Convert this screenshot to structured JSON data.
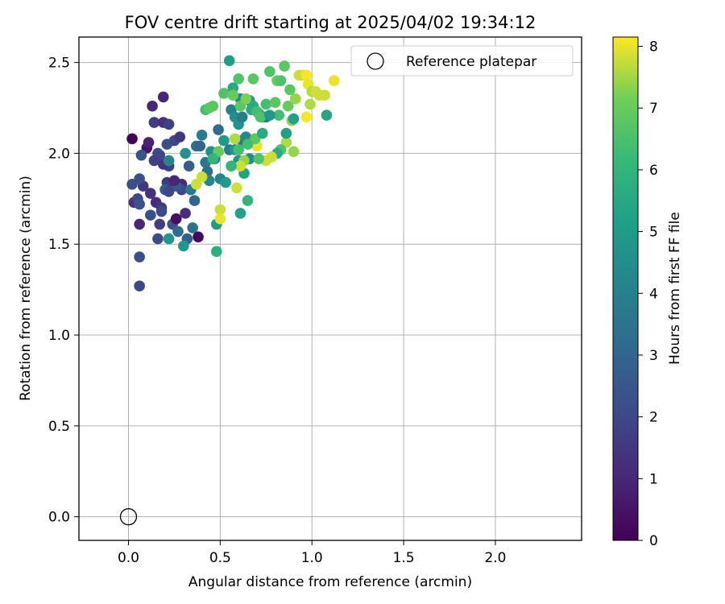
{
  "chart_data": {
    "type": "scatter",
    "title": "FOV centre drift starting at 2025/04/02 19:34:12",
    "xlabel": "Angular distance from reference (arcmin)",
    "ylabel": "Rotation from reference (arcmin)",
    "xlim": [
      -0.27,
      2.47
    ],
    "ylim": [
      -0.13,
      2.64
    ],
    "xticks": [
      "0.0",
      "0.5",
      "1.0",
      "1.5",
      "2.0"
    ],
    "yticks": [
      "0.0",
      "0.5",
      "1.0",
      "1.5",
      "2.0",
      "2.5"
    ],
    "grid": true,
    "legend": {
      "location": "top-right",
      "entries": [
        "Reference platepar"
      ]
    },
    "colorbar": {
      "label": "Hours from first FF file",
      "min": 0,
      "max": 8.15,
      "ticks": [
        "0",
        "1",
        "2",
        "3",
        "4",
        "5",
        "6",
        "7",
        "8"
      ],
      "colormap": "viridis"
    },
    "reference_point": {
      "x": 0.0,
      "y": 0.0,
      "label": "Reference platepar"
    },
    "series": [
      {
        "points": [
          [
            0.02,
            2.08,
            0.1
          ],
          [
            0.1,
            2.03,
            0.5
          ],
          [
            0.11,
            2.06,
            0.9
          ],
          [
            0.13,
            2.26,
            1.0
          ],
          [
            0.19,
            2.31,
            1.0
          ],
          [
            0.14,
            2.17,
            1.6
          ],
          [
            0.19,
            2.17,
            1.2
          ],
          [
            0.22,
            2.16,
            1.8
          ],
          [
            0.03,
            1.73,
            1.2
          ],
          [
            0.06,
            1.61,
            1.0
          ],
          [
            0.08,
            1.82,
            1.5
          ],
          [
            0.12,
            1.78,
            1.3
          ],
          [
            0.15,
            1.73,
            1.2
          ],
          [
            0.18,
            1.7,
            1.5
          ],
          [
            0.17,
            1.61,
            1.7
          ],
          [
            0.16,
            1.53,
            2.1
          ],
          [
            0.12,
            1.66,
            2.2
          ],
          [
            0.24,
            1.61,
            2.4
          ],
          [
            0.26,
            1.64,
            0.4
          ],
          [
            0.31,
            1.67,
            1.2
          ],
          [
            0.32,
            1.53,
            2.8
          ],
          [
            0.38,
            1.54,
            0.2
          ],
          [
            0.29,
            1.83,
            1.0
          ],
          [
            0.29,
            1.8,
            2.0
          ],
          [
            0.26,
            1.82,
            2.6
          ],
          [
            0.21,
            1.84,
            1.6
          ],
          [
            0.25,
            1.85,
            1.0
          ],
          [
            0.22,
            1.93,
            1.8
          ],
          [
            0.19,
            1.94,
            1.4
          ],
          [
            0.16,
            2.0,
            2.0
          ],
          [
            0.21,
            2.05,
            2.2
          ],
          [
            0.25,
            2.07,
            2.0
          ],
          [
            0.28,
            2.09,
            1.5
          ],
          [
            0.17,
            1.99,
            2.0
          ],
          [
            0.14,
            1.96,
            1.8
          ],
          [
            0.07,
            1.99,
            2.4
          ],
          [
            0.06,
            1.86,
            2.2
          ],
          [
            0.02,
            1.83,
            2.2
          ],
          [
            0.05,
            1.75,
            2.0
          ],
          [
            0.06,
            1.72,
            2.4
          ],
          [
            0.06,
            1.43,
            2.2
          ],
          [
            0.06,
            1.27,
            2.0
          ],
          [
            0.18,
            1.68,
            2.0
          ],
          [
            0.2,
            1.8,
            2.6
          ],
          [
            0.22,
            1.79,
            1.9
          ],
          [
            0.22,
            1.96,
            4.2
          ],
          [
            0.27,
            1.57,
            3.2
          ],
          [
            0.22,
            1.53,
            4.8
          ],
          [
            0.3,
            1.49,
            4.9
          ],
          [
            0.35,
            1.59,
            3.4
          ],
          [
            0.36,
            1.74,
            3.0
          ],
          [
            0.34,
            1.8,
            3.6
          ],
          [
            0.33,
            1.93,
            2.7
          ],
          [
            0.31,
            2.0,
            4.6
          ],
          [
            0.37,
            2.04,
            3.4
          ],
          [
            0.39,
            2.04,
            3.0
          ],
          [
            0.4,
            2.1,
            3.8
          ],
          [
            0.42,
            1.95,
            3.6
          ],
          [
            0.43,
            1.9,
            3.3
          ],
          [
            0.44,
            1.85,
            4.2
          ],
          [
            0.45,
            2.01,
            4.6
          ],
          [
            0.47,
            1.97,
            4.0
          ],
          [
            0.49,
            2.13,
            3.2
          ],
          [
            0.5,
            1.86,
            4.2
          ],
          [
            0.52,
            2.07,
            5.0
          ],
          [
            0.55,
            2.02,
            3.8
          ],
          [
            0.56,
            2.24,
            4.0
          ],
          [
            0.58,
            2.2,
            4.6
          ],
          [
            0.6,
            2.16,
            4.6
          ],
          [
            0.61,
            2.3,
            4.4
          ],
          [
            0.62,
            2.07,
            3.6
          ],
          [
            0.62,
            2.2,
            3.8
          ],
          [
            0.64,
            2.09,
            4.4
          ],
          [
            0.66,
            1.97,
            4.4
          ],
          [
            0.66,
            2.29,
            5.0
          ],
          [
            0.67,
            2.24,
            5.4
          ],
          [
            0.68,
            2.26,
            5.6
          ],
          [
            0.71,
            2.22,
            5.0
          ],
          [
            0.73,
            2.2,
            4.4
          ],
          [
            0.75,
            2.2,
            3.7
          ],
          [
            0.63,
            1.89,
            5.3
          ],
          [
            0.61,
            1.67,
            5.2
          ],
          [
            0.53,
            1.84,
            5.0
          ],
          [
            0.48,
            1.61,
            5.0
          ],
          [
            0.48,
            1.46,
            5.8
          ],
          [
            0.55,
            2.51,
            5.1
          ],
          [
            0.57,
            2.36,
            5.5
          ],
          [
            0.58,
            2.02,
            4.9
          ],
          [
            0.6,
            1.96,
            4.6
          ],
          [
            0.65,
            1.74,
            6.0
          ],
          [
            0.42,
            2.24,
            6.4
          ],
          [
            0.44,
            2.25,
            6.8
          ],
          [
            0.46,
            2.26,
            6.8
          ],
          [
            0.52,
            2.33,
            6.6
          ],
          [
            0.57,
            2.32,
            7.0
          ],
          [
            0.6,
            2.41,
            6.6
          ],
          [
            0.61,
            2.26,
            6.8
          ],
          [
            0.64,
            2.3,
            7.2
          ],
          [
            0.68,
            2.41,
            6.8
          ],
          [
            0.7,
            2.23,
            6.4
          ],
          [
            0.72,
            2.2,
            6.6
          ],
          [
            0.75,
            2.27,
            6.4
          ],
          [
            0.77,
            2.45,
            6.6
          ],
          [
            0.8,
            2.28,
            6.8
          ],
          [
            0.81,
            2.4,
            7.0
          ],
          [
            0.83,
            2.4,
            6.6
          ],
          [
            0.85,
            2.48,
            6.8
          ],
          [
            0.87,
            2.26,
            7.0
          ],
          [
            0.88,
            2.35,
            6.8
          ],
          [
            0.89,
            2.18,
            7.4
          ],
          [
            0.91,
            2.3,
            7.4
          ],
          [
            0.93,
            2.43,
            7.8
          ],
          [
            0.95,
            2.43,
            7.8
          ],
          [
            0.97,
            2.43,
            8.1
          ],
          [
            0.98,
            2.38,
            8.0
          ],
          [
            1.0,
            2.34,
            7.6
          ],
          [
            1.02,
            2.34,
            7.8
          ],
          [
            1.04,
            2.32,
            7.8
          ],
          [
            1.07,
            2.32,
            7.8
          ],
          [
            1.12,
            2.4,
            8.0
          ],
          [
            0.99,
            2.27,
            7.6
          ],
          [
            0.97,
            2.2,
            8.1
          ],
          [
            0.9,
            2.01,
            7.4
          ],
          [
            0.86,
            2.06,
            7.6
          ],
          [
            0.83,
            2.02,
            6.6
          ],
          [
            0.81,
            2.0,
            5.6
          ],
          [
            0.78,
            1.98,
            7.8
          ],
          [
            0.75,
            1.96,
            7.8
          ],
          [
            0.7,
            2.04,
            8.0
          ],
          [
            0.69,
            2.08,
            6.8
          ],
          [
            0.65,
            2.05,
            6.4
          ],
          [
            0.63,
            1.96,
            7.4
          ],
          [
            0.61,
            1.93,
            7.8
          ],
          [
            0.6,
            2.02,
            6.4
          ],
          [
            0.58,
            2.08,
            7.6
          ],
          [
            0.56,
            1.93,
            6.0
          ],
          [
            0.59,
            1.81,
            7.8
          ],
          [
            0.5,
            1.69,
            7.8
          ],
          [
            0.5,
            1.64,
            8.0
          ],
          [
            0.49,
            2.01,
            7.0
          ],
          [
            0.46,
            1.97,
            6.0
          ],
          [
            0.4,
            1.87,
            7.8
          ],
          [
            0.37,
            1.83,
            7.8
          ],
          [
            0.71,
            1.97,
            6.6
          ],
          [
            0.86,
            2.11,
            5.2
          ],
          [
            1.08,
            2.21,
            5.4
          ],
          [
            0.9,
            2.19,
            5.2
          ],
          [
            0.82,
            2.21,
            6.4
          ],
          [
            0.77,
            2.21,
            4.8
          ],
          [
            0.73,
            2.11,
            5.6
          ]
        ]
      }
    ]
  }
}
